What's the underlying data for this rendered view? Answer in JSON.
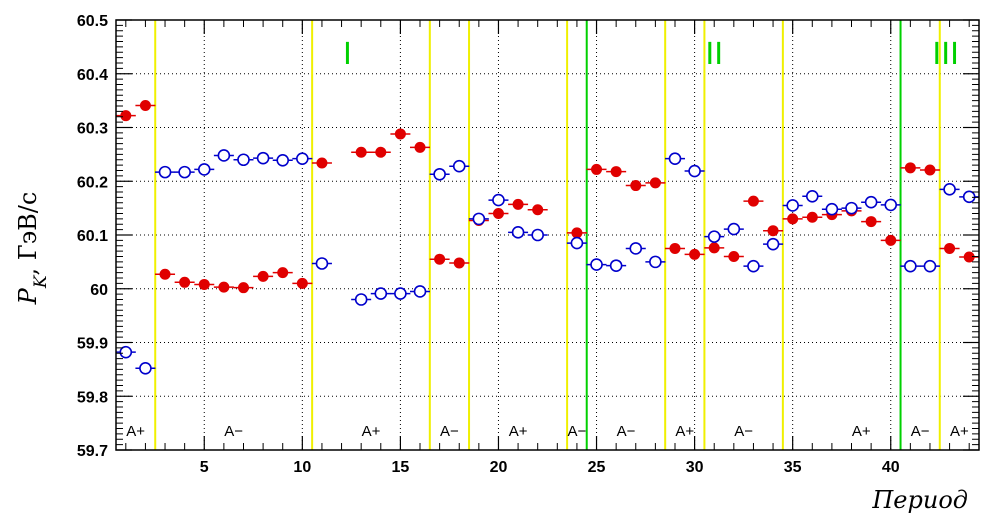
{
  "chart_data": {
    "type": "scatter",
    "xlabel": "Период",
    "ylabel": "P_K, ГэВ/c",
    "xlim": [
      0.5,
      44.5
    ],
    "ylim": [
      59.7,
      60.5
    ],
    "grid": true,
    "x_ticks": [
      "5",
      "10",
      "15",
      "20",
      "25",
      "30",
      "35",
      "40"
    ],
    "y_ticks": [
      "59.7",
      "59.8",
      "59.9",
      "60",
      "60.1",
      "60.2",
      "60.3",
      "60.4",
      "60.5"
    ],
    "y_ticks_values": [
      59.7,
      59.8,
      59.9,
      60.0,
      60.1,
      60.2,
      60.3,
      60.4,
      60.5
    ],
    "series": [
      {
        "marker": "filled-circle",
        "color": "#e00000",
        "points": [
          [
            1,
            60.322
          ],
          [
            2,
            60.341
          ],
          [
            3,
            60.027
          ],
          [
            4,
            60.012
          ],
          [
            5,
            60.008
          ],
          [
            6,
            60.003
          ],
          [
            7,
            60.002
          ],
          [
            8,
            60.023
          ],
          [
            9,
            60.03
          ],
          [
            10,
            60.01
          ],
          [
            11,
            60.234
          ],
          [
            13,
            60.254
          ],
          [
            14,
            60.254
          ],
          [
            15,
            60.288
          ],
          [
            16,
            60.263
          ],
          [
            17,
            60.055
          ],
          [
            18,
            60.048
          ],
          [
            19,
            60.127
          ],
          [
            20,
            60.14
          ],
          [
            21,
            60.157
          ],
          [
            22,
            60.147
          ],
          [
            24,
            60.104
          ],
          [
            25,
            60.222
          ],
          [
            26,
            60.218
          ],
          [
            27,
            60.192
          ],
          [
            28,
            60.197
          ],
          [
            29,
            60.075
          ],
          [
            30,
            60.064
          ],
          [
            31,
            60.076
          ],
          [
            32,
            60.06
          ],
          [
            33,
            60.163
          ],
          [
            34,
            60.108
          ],
          [
            35,
            60.13
          ],
          [
            36,
            60.133
          ],
          [
            37,
            60.138
          ],
          [
            38,
            60.145
          ],
          [
            39,
            60.125
          ],
          [
            40,
            60.09
          ],
          [
            41,
            60.225
          ],
          [
            42,
            60.221
          ],
          [
            43,
            60.075
          ],
          [
            44,
            60.059
          ]
        ]
      },
      {
        "marker": "open-circle",
        "color": "#0000cc",
        "points": [
          [
            1,
            59.882
          ],
          [
            2,
            59.852
          ],
          [
            3,
            60.217
          ],
          [
            4,
            60.217
          ],
          [
            5,
            60.222
          ],
          [
            6,
            60.248
          ],
          [
            7,
            60.24
          ],
          [
            8,
            60.243
          ],
          [
            9,
            60.239
          ],
          [
            10,
            60.242
          ],
          [
            11,
            60.047
          ],
          [
            13,
            59.98
          ],
          [
            14,
            59.991
          ],
          [
            15,
            59.991
          ],
          [
            16,
            59.995
          ],
          [
            17,
            60.213
          ],
          [
            18,
            60.228
          ],
          [
            19,
            60.13
          ],
          [
            20,
            60.165
          ],
          [
            21,
            60.105
          ],
          [
            22,
            60.1
          ],
          [
            24,
            60.085
          ],
          [
            25,
            60.045
          ],
          [
            26,
            60.043
          ],
          [
            27,
            60.075
          ],
          [
            28,
            60.05
          ],
          [
            29,
            60.242
          ],
          [
            30,
            60.219
          ],
          [
            31,
            60.097
          ],
          [
            32,
            60.111
          ],
          [
            33,
            60.042
          ],
          [
            34,
            60.083
          ],
          [
            35,
            60.155
          ],
          [
            36,
            60.172
          ],
          [
            37,
            60.148
          ],
          [
            38,
            60.15
          ],
          [
            39,
            60.161
          ],
          [
            40,
            60.156
          ],
          [
            41,
            60.042
          ],
          [
            42,
            60.042
          ],
          [
            43,
            60.185
          ],
          [
            44,
            60.171
          ]
        ]
      }
    ],
    "yellow_lines_x": [
      2.5,
      10.5,
      16.5,
      18.5,
      23.5,
      28.5,
      30.5,
      34.5,
      42.5
    ],
    "green_lines_x": [
      24.5,
      40.5
    ],
    "region_labels": [
      {
        "text": "A+",
        "x": 1.5
      },
      {
        "text": "A−",
        "x": 6.5
      },
      {
        "text": "A+",
        "x": 13.5
      },
      {
        "text": "A−",
        "x": 17.5
      },
      {
        "text": "A+",
        "x": 21.0
      },
      {
        "text": "A−",
        "x": 24.0
      },
      {
        "text": "A−",
        "x": 26.5
      },
      {
        "text": "A+",
        "x": 29.5
      },
      {
        "text": "A−",
        "x": 32.5
      },
      {
        "text": "A+",
        "x": 38.5
      },
      {
        "text": "A−",
        "x": 41.5
      },
      {
        "text": "A+",
        "x": 43.5
      }
    ],
    "period_markers": [
      {
        "text": "I",
        "x": 12.3
      },
      {
        "text": "II",
        "x": 31.0
      },
      {
        "text": "III",
        "x": 42.8
      }
    ],
    "colors": {
      "yellow_line": "#f0f000",
      "green_line": "#00d000"
    }
  }
}
